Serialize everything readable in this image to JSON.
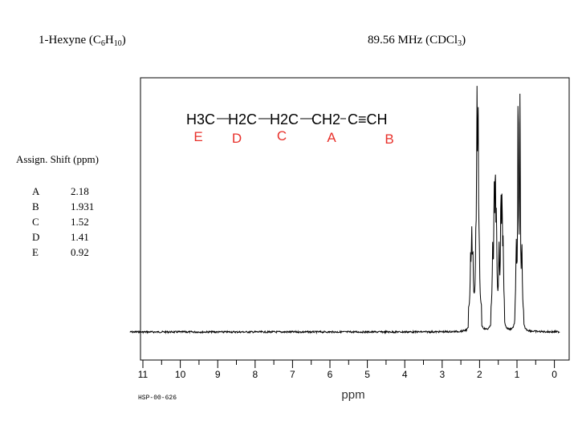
{
  "header": {
    "compound_name": "1-Hexyne (C",
    "formula_c": "6",
    "formula_h_label": "H",
    "formula_h": "10",
    "compound_close": ")",
    "frequency": "89.56 MHz (CDCl",
    "solvent_sub": "3",
    "frequency_close": ")"
  },
  "assignments": {
    "header": "Assign. Shift (ppm)",
    "rows": [
      {
        "label": "A",
        "shift": "2.18"
      },
      {
        "label": "B",
        "shift": "1.931"
      },
      {
        "label": "C",
        "shift": "1.52"
      },
      {
        "label": "D",
        "shift": "1.41"
      },
      {
        "label": "E",
        "shift": "0.92"
      }
    ]
  },
  "structure": {
    "groups": [
      "H3C",
      "H2C",
      "H2C",
      "CH2",
      "C≡CH"
    ],
    "labels": [
      "E",
      "D",
      "C",
      "A",
      "B"
    ],
    "label_color": "#e8312b"
  },
  "footer": {
    "spectrum_id": "HSP-00-626"
  },
  "chart_data": {
    "type": "line",
    "xlabel": "ppm",
    "ylabel": "",
    "xlim": [
      11.4,
      -0.2
    ],
    "x_reversed": true,
    "ylim": [
      0,
      1
    ],
    "grid": false,
    "ticks": [
      11,
      10,
      9,
      8,
      7,
      6,
      5,
      4,
      3,
      2,
      1,
      0
    ],
    "tick_labels": [
      "11",
      "10",
      "9",
      "8",
      "7",
      "6",
      "5",
      "4",
      "3",
      "2",
      "1",
      "0"
    ],
    "series": [
      {
        "peaks": [
          {
            "shift": 2.24,
            "height": 0.2
          },
          {
            "shift": 2.21,
            "height": 0.31
          },
          {
            "shift": 2.18,
            "height": 0.22
          },
          {
            "shift": 2.1,
            "height": 0.22
          },
          {
            "shift": 2.07,
            "height": 0.82
          },
          {
            "shift": 2.04,
            "height": 0.8
          },
          {
            "shift": 2.01,
            "height": 0.2
          },
          {
            "shift": 1.65,
            "height": 0.25
          },
          {
            "shift": 1.61,
            "height": 0.47
          },
          {
            "shift": 1.58,
            "height": 0.54
          },
          {
            "shift": 1.55,
            "height": 0.36
          },
          {
            "shift": 1.48,
            "height": 0.26
          },
          {
            "shift": 1.43,
            "height": 0.47
          },
          {
            "shift": 1.4,
            "height": 0.44
          },
          {
            "shift": 1.37,
            "height": 0.25
          },
          {
            "shift": 1.02,
            "height": 0.29
          },
          {
            "shift": 0.97,
            "height": 0.97
          },
          {
            "shift": 0.92,
            "height": 0.9
          },
          {
            "shift": 0.87,
            "height": 0.28
          }
        ]
      }
    ]
  }
}
